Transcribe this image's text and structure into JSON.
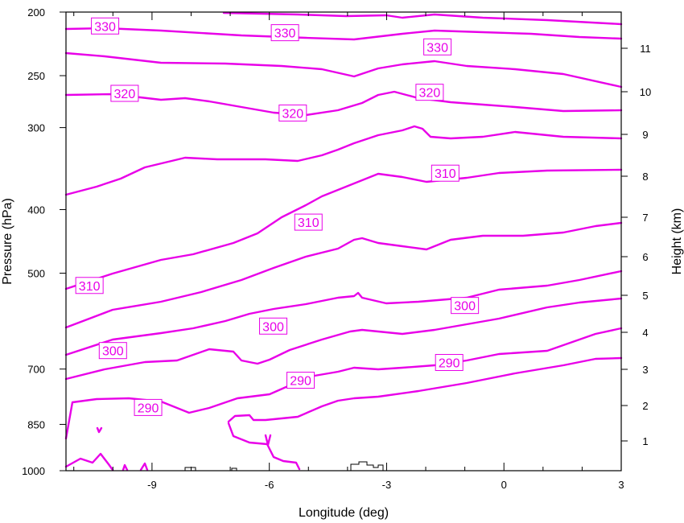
{
  "chart_data": {
    "type": "contour",
    "title": "",
    "xlabel": "Longitude (deg)",
    "ylabel": "Pressure (hPa)",
    "y2label": "Height (km)",
    "xlim": [
      -11.2,
      3
    ],
    "ylim": [
      1000,
      200
    ],
    "y_scale": "log",
    "x_ticks": [
      -9,
      -6,
      -3,
      0,
      3
    ],
    "x_tick_labels": [
      "-9",
      "-6",
      "-3",
      "0",
      "3"
    ],
    "y_ticks": [
      200,
      250,
      300,
      400,
      500,
      700,
      850,
      1000
    ],
    "y_tick_labels": [
      "200",
      "250",
      "300",
      "400",
      "500",
      "700",
      "850",
      "1000"
    ],
    "y2_ticks": [
      1,
      2,
      3,
      4,
      5,
      6,
      7,
      8,
      9,
      10,
      11
    ],
    "y2_tick_labels": [
      "1",
      "2",
      "3",
      "4",
      "5",
      "6",
      "7",
      "8",
      "9",
      "10",
      "11"
    ],
    "contour_color": "#e800e8",
    "contour_labels": [
      {
        "text": "330",
        "lon": -10.2,
        "p": 210
      },
      {
        "text": "330",
        "lon": -5.6,
        "p": 215
      },
      {
        "text": "330",
        "lon": -1.7,
        "p": 226
      },
      {
        "text": "320",
        "lon": -9.7,
        "p": 266
      },
      {
        "text": "320",
        "lon": -5.4,
        "p": 285
      },
      {
        "text": "320",
        "lon": -1.9,
        "p": 265
      },
      {
        "text": "310",
        "lon": -1.5,
        "p": 352
      },
      {
        "text": "310",
        "lon": -5.0,
        "p": 418
      },
      {
        "text": "310",
        "lon": -10.6,
        "p": 522
      },
      {
        "text": "300",
        "lon": -1.0,
        "p": 560
      },
      {
        "text": "300",
        "lon": -5.9,
        "p": 602
      },
      {
        "text": "300",
        "lon": -10.0,
        "p": 656
      },
      {
        "text": "290",
        "lon": -1.4,
        "p": 684
      },
      {
        "text": "290",
        "lon": -5.2,
        "p": 728
      },
      {
        "text": "290",
        "lon": -9.1,
        "p": 801
      }
    ]
  }
}
